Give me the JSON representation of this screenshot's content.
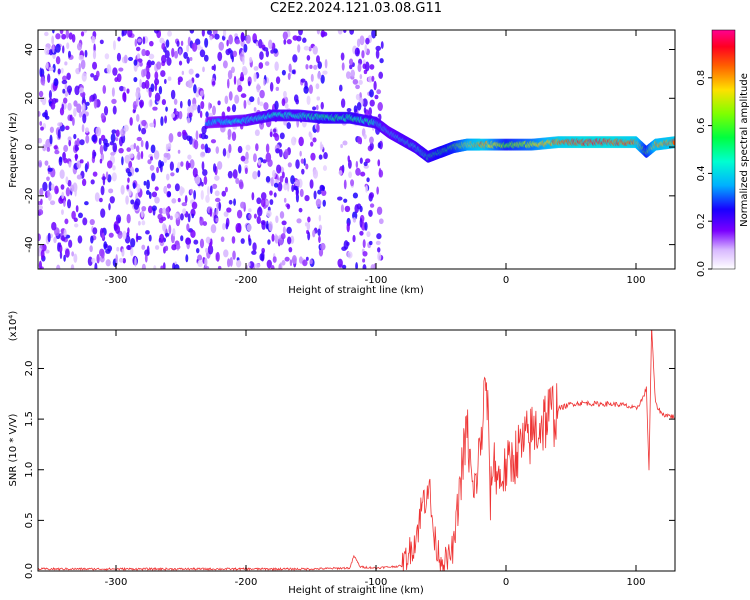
{
  "title": "C2E2.2024.121.03.08.G11",
  "colors": {
    "background": "#ffffff",
    "snr_line": "#ee3333",
    "axis": "#000000"
  },
  "chart_data": [
    {
      "type": "heatmap",
      "xlabel": "Height of straight line (km)",
      "ylabel": "Frequency (Hz)",
      "xlim": [
        -360,
        130
      ],
      "ylim": [
        -50,
        48
      ],
      "x_ticks": [
        -300,
        -200,
        -100,
        0,
        100
      ],
      "x_tick_labels": [
        "-300",
        "-200",
        "-100",
        "0",
        "100"
      ],
      "y_ticks": [
        -40,
        -20,
        0,
        20,
        40
      ],
      "y_tick_labels": [
        "-40",
        "-20",
        "0",
        "20",
        "40"
      ],
      "colorbar": {
        "label": "Normalized spectral amplitude",
        "range": [
          0,
          1
        ],
        "ticks": [
          0.0,
          0.2,
          0.4,
          0.6,
          0.8
        ],
        "tick_labels": [
          "0.0",
          "0.2",
          "0.4",
          "0.6",
          "0.8"
        ],
        "colormap": "rainbow"
      },
      "ridge": {
        "x": [
          -230,
          -200,
          -180,
          -160,
          -140,
          -120,
          -100,
          -90,
          -80,
          -70,
          -60,
          -50,
          -40,
          -30,
          -20,
          0,
          20,
          40,
          60,
          80,
          100,
          108,
          115,
          130
        ],
        "y": [
          10,
          11,
          13,
          13,
          12,
          12,
          10,
          6,
          3,
          0,
          -4,
          -2,
          0,
          1,
          1,
          1,
          1,
          2,
          2,
          2,
          2,
          -2,
          1,
          2
        ],
        "amplitude": [
          0.35,
          0.4,
          0.45,
          0.45,
          0.5,
          0.5,
          0.45,
          0.4,
          0.45,
          0.45,
          0.5,
          0.55,
          0.6,
          0.75,
          0.85,
          0.6,
          0.7,
          0.85,
          0.9,
          0.9,
          0.85,
          0.6,
          0.8,
          0.85
        ]
      },
      "noise_region": {
        "x_range": [
          -360,
          -95
        ],
        "y_range": [
          -50,
          48
        ],
        "amplitude_range": [
          0.05,
          0.25
        ]
      }
    },
    {
      "type": "line",
      "xlabel": "Height of straight line (km)",
      "ylabel": "SNR (10 * V/V)",
      "y_multiplier": "(x10⁴)",
      "xlim": [
        -360,
        130
      ],
      "ylim": [
        0,
        2.38
      ],
      "x_ticks": [
        -300,
        -200,
        -100,
        0,
        100
      ],
      "x_tick_labels": [
        "-300",
        "-200",
        "-100",
        "0",
        "100"
      ],
      "y_ticks": [
        0.0,
        0.5,
        1.0,
        1.5,
        2.0
      ],
      "y_tick_labels": [
        "0.0",
        "0.5",
        "1.0",
        "1.5",
        "2.0"
      ],
      "series": [
        {
          "x": [
            -360,
            -300,
            -250,
            -200,
            -150,
            -120,
            -117,
            -112,
            -100,
            -80,
            -70,
            -65,
            -60,
            -55,
            -50,
            -45,
            -40,
            -35,
            -30,
            -25,
            -20,
            -15,
            -12,
            -10,
            -5,
            0,
            10,
            20,
            30,
            40,
            50,
            60,
            70,
            80,
            90,
            100,
            105,
            108,
            110,
            112,
            115,
            120,
            130
          ],
          "y": [
            0.02,
            0.02,
            0.02,
            0.02,
            0.02,
            0.03,
            0.15,
            0.04,
            0.03,
            0.05,
            0.3,
            0.6,
            0.9,
            0.3,
            0.12,
            0.1,
            0.25,
            0.9,
            1.4,
            0.7,
            1.2,
            1.9,
            0.7,
            1.1,
            0.9,
            1.0,
            1.2,
            1.35,
            1.5,
            1.6,
            1.65,
            1.66,
            1.65,
            1.65,
            1.64,
            1.6,
            1.7,
            1.8,
            1.0,
            2.4,
            1.65,
            1.55,
            1.52
          ]
        }
      ]
    }
  ]
}
